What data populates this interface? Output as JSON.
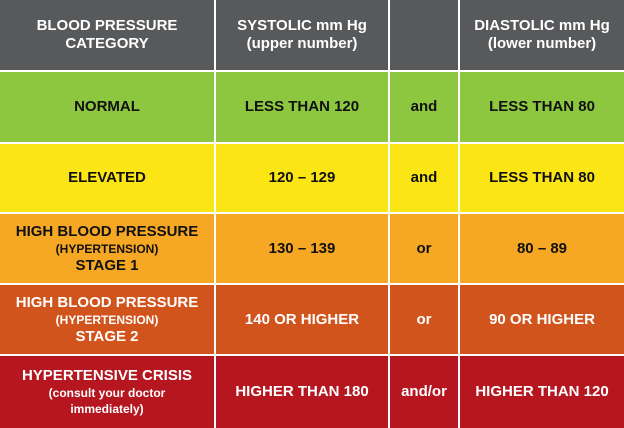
{
  "table": {
    "header": [
      [
        "BLOOD PRESSURE",
        "CATEGORY"
      ],
      [
        "SYSTOLIC mm Hg",
        "(upper number)"
      ],
      [
        "DIASTOLIC mm Hg",
        "(lower number)"
      ]
    ],
    "rows": [
      {
        "category": [
          "NORMAL"
        ],
        "systolic": "LESS THAN 120",
        "connector": "and",
        "diastolic": "LESS THAN 80"
      },
      {
        "category": [
          "ELEVATED"
        ],
        "systolic": "120 – 129",
        "connector": "and",
        "diastolic": "LESS THAN 80"
      },
      {
        "category": [
          "HIGH BLOOD PRESSURE",
          "(HYPERTENSION)",
          "STAGE 1"
        ],
        "systolic": "130 – 139",
        "connector": "or",
        "diastolic": "80 – 89"
      },
      {
        "category": [
          "HIGH BLOOD PRESSURE",
          "(HYPERTENSION)",
          "STAGE 2"
        ],
        "systolic": "140 OR HIGHER",
        "connector": "or",
        "diastolic": "90 OR HIGHER"
      },
      {
        "category": [
          "HYPERTENSIVE CRISIS",
          "(consult your doctor",
          "immediately)"
        ],
        "systolic": "HIGHER THAN 180",
        "connector": "and/or",
        "diastolic": "HIGHER THAN 120"
      }
    ]
  }
}
